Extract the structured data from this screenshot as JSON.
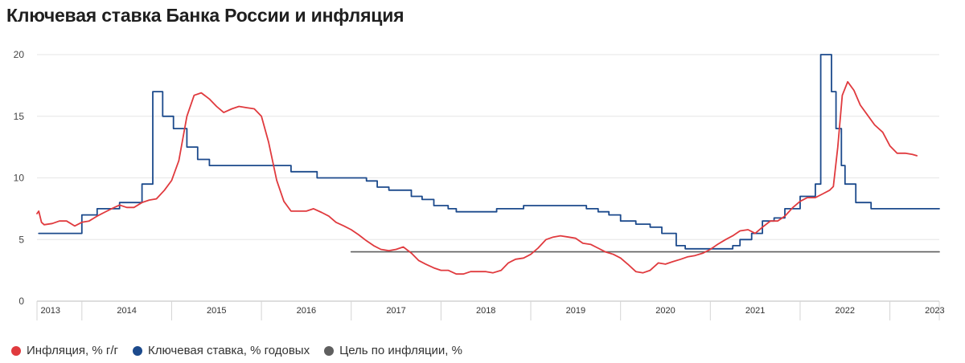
{
  "title": "Ключевая ставка Банка России и инфляция",
  "chart_data": {
    "type": "line",
    "ylim": [
      0,
      20
    ],
    "yticks": [
      0,
      5,
      10,
      15,
      20
    ],
    "xlim": [
      2013.0,
      2023.05
    ],
    "xticks": [
      {
        "label": "2013",
        "pos": 2013.15
      },
      {
        "label": "2014",
        "pos": 2014.0
      },
      {
        "label": "2015",
        "pos": 2015.0
      },
      {
        "label": "2016",
        "pos": 2016.0
      },
      {
        "label": "2017",
        "pos": 2017.0
      },
      {
        "label": "2018",
        "pos": 2018.0
      },
      {
        "label": "2019",
        "pos": 2019.0
      },
      {
        "label": "2020",
        "pos": 2020.0
      },
      {
        "label": "2021",
        "pos": 2021.0
      },
      {
        "label": "2022",
        "pos": 2022.0
      },
      {
        "label": "2023",
        "pos": 2023.0
      }
    ],
    "grid": true,
    "legend_position": "bottom-left",
    "series": [
      {
        "name": "Инфляция, % г/г",
        "color": "#e03a3e",
        "kind": "line",
        "points": [
          [
            2013.0,
            7.1
          ],
          [
            2013.02,
            7.3
          ],
          [
            2013.05,
            6.4
          ],
          [
            2013.08,
            6.2
          ],
          [
            2013.17,
            6.3
          ],
          [
            2013.25,
            6.5
          ],
          [
            2013.33,
            6.5
          ],
          [
            2013.42,
            6.1
          ],
          [
            2013.5,
            6.4
          ],
          [
            2013.58,
            6.5
          ],
          [
            2013.67,
            6.9
          ],
          [
            2013.75,
            7.2
          ],
          [
            2013.83,
            7.5
          ],
          [
            2013.92,
            7.8
          ],
          [
            2014.0,
            7.6
          ],
          [
            2014.08,
            7.6
          ],
          [
            2014.17,
            8.0
          ],
          [
            2014.25,
            8.2
          ],
          [
            2014.33,
            8.3
          ],
          [
            2014.42,
            9.0
          ],
          [
            2014.5,
            9.8
          ],
          [
            2014.58,
            11.4
          ],
          [
            2014.67,
            15.0
          ],
          [
            2014.75,
            16.7
          ],
          [
            2014.83,
            16.9
          ],
          [
            2014.92,
            16.4
          ],
          [
            2015.0,
            15.8
          ],
          [
            2015.08,
            15.3
          ],
          [
            2015.17,
            15.6
          ],
          [
            2015.25,
            15.8
          ],
          [
            2015.33,
            15.7
          ],
          [
            2015.42,
            15.6
          ],
          [
            2015.5,
            15.0
          ],
          [
            2015.58,
            12.9
          ],
          [
            2015.67,
            9.8
          ],
          [
            2015.75,
            8.1
          ],
          [
            2015.83,
            7.3
          ],
          [
            2015.92,
            7.3
          ],
          [
            2016.0,
            7.3
          ],
          [
            2016.08,
            7.5
          ],
          [
            2016.17,
            7.2
          ],
          [
            2016.25,
            6.9
          ],
          [
            2016.33,
            6.4
          ],
          [
            2016.42,
            6.1
          ],
          [
            2016.5,
            5.8
          ],
          [
            2016.58,
            5.4
          ],
          [
            2016.67,
            4.9
          ],
          [
            2016.75,
            4.5
          ],
          [
            2016.83,
            4.2
          ],
          [
            2016.92,
            4.1
          ],
          [
            2017.0,
            4.2
          ],
          [
            2017.08,
            4.4
          ],
          [
            2017.17,
            3.9
          ],
          [
            2017.25,
            3.3
          ],
          [
            2017.33,
            3.0
          ],
          [
            2017.42,
            2.7
          ],
          [
            2017.5,
            2.5
          ],
          [
            2017.58,
            2.5
          ],
          [
            2017.67,
            2.2
          ],
          [
            2017.75,
            2.2
          ],
          [
            2017.83,
            2.4
          ],
          [
            2017.92,
            2.4
          ],
          [
            2018.0,
            2.4
          ],
          [
            2018.08,
            2.3
          ],
          [
            2018.17,
            2.5
          ],
          [
            2018.25,
            3.1
          ],
          [
            2018.33,
            3.4
          ],
          [
            2018.42,
            3.5
          ],
          [
            2018.5,
            3.8
          ],
          [
            2018.58,
            4.3
          ],
          [
            2018.67,
            5.0
          ],
          [
            2018.75,
            5.2
          ],
          [
            2018.83,
            5.3
          ],
          [
            2018.92,
            5.2
          ],
          [
            2019.0,
            5.1
          ],
          [
            2019.08,
            4.7
          ],
          [
            2019.17,
            4.6
          ],
          [
            2019.25,
            4.3
          ],
          [
            2019.33,
            4.0
          ],
          [
            2019.42,
            3.8
          ],
          [
            2019.5,
            3.5
          ],
          [
            2019.58,
            3.0
          ],
          [
            2019.67,
            2.4
          ],
          [
            2019.75,
            2.3
          ],
          [
            2019.83,
            2.5
          ],
          [
            2019.92,
            3.1
          ],
          [
            2020.0,
            3.0
          ],
          [
            2020.08,
            3.2
          ],
          [
            2020.17,
            3.4
          ],
          [
            2020.25,
            3.6
          ],
          [
            2020.33,
            3.7
          ],
          [
            2020.42,
            3.9
          ],
          [
            2020.5,
            4.2
          ],
          [
            2020.58,
            4.6
          ],
          [
            2020.67,
            5.0
          ],
          [
            2020.75,
            5.3
          ],
          [
            2020.83,
            5.7
          ],
          [
            2020.92,
            5.8
          ],
          [
            2021.0,
            5.5
          ],
          [
            2021.08,
            6.0
          ],
          [
            2021.17,
            6.5
          ],
          [
            2021.25,
            6.5
          ],
          [
            2021.33,
            6.9
          ],
          [
            2021.42,
            7.6
          ],
          [
            2021.5,
            8.1
          ],
          [
            2021.58,
            8.4
          ],
          [
            2021.67,
            8.4
          ],
          [
            2021.75,
            8.7
          ],
          [
            2021.83,
            9.0
          ],
          [
            2021.87,
            9.3
          ],
          [
            2021.92,
            12.5
          ],
          [
            2021.97,
            16.7
          ],
          [
            2022.03,
            17.8
          ],
          [
            2022.1,
            17.1
          ],
          [
            2022.17,
            15.9
          ],
          [
            2022.25,
            15.1
          ],
          [
            2022.33,
            14.3
          ],
          [
            2022.42,
            13.7
          ],
          [
            2022.5,
            12.6
          ],
          [
            2022.58,
            12.0
          ],
          [
            2022.67,
            12.0
          ],
          [
            2022.75,
            11.9
          ],
          [
            2022.8,
            11.8
          ]
        ]
      },
      {
        "name": "Ключевая ставка, % годовых",
        "color": "#1c4a8c",
        "kind": "step",
        "points": [
          [
            2013.02,
            5.5
          ],
          [
            2013.5,
            5.5
          ],
          [
            2013.5,
            7.0
          ],
          [
            2013.67,
            7.0
          ],
          [
            2013.67,
            7.5
          ],
          [
            2013.92,
            7.5
          ],
          [
            2013.92,
            8.0
          ],
          [
            2014.17,
            8.0
          ],
          [
            2014.17,
            9.5
          ],
          [
            2014.29,
            9.5
          ],
          [
            2014.29,
            17.0
          ],
          [
            2014.4,
            17.0
          ],
          [
            2014.4,
            15.0
          ],
          [
            2014.52,
            15.0
          ],
          [
            2014.52,
            14.0
          ],
          [
            2014.67,
            14.0
          ],
          [
            2014.67,
            12.5
          ],
          [
            2014.79,
            12.5
          ],
          [
            2014.79,
            11.5
          ],
          [
            2014.92,
            11.5
          ],
          [
            2014.92,
            11.0
          ],
          [
            2015.83,
            11.0
          ],
          [
            2015.83,
            10.5
          ],
          [
            2016.12,
            10.5
          ],
          [
            2016.12,
            10.0
          ],
          [
            2016.67,
            10.0
          ],
          [
            2016.67,
            9.75
          ],
          [
            2016.79,
            9.75
          ],
          [
            2016.79,
            9.25
          ],
          [
            2016.92,
            9.25
          ],
          [
            2016.92,
            9.0
          ],
          [
            2017.17,
            9.0
          ],
          [
            2017.17,
            8.5
          ],
          [
            2017.29,
            8.5
          ],
          [
            2017.29,
            8.25
          ],
          [
            2017.42,
            8.25
          ],
          [
            2017.42,
            7.75
          ],
          [
            2017.58,
            7.75
          ],
          [
            2017.58,
            7.5
          ],
          [
            2017.67,
            7.5
          ],
          [
            2017.67,
            7.25
          ],
          [
            2018.12,
            7.25
          ],
          [
            2018.12,
            7.5
          ],
          [
            2018.42,
            7.5
          ],
          [
            2018.42,
            7.75
          ],
          [
            2019.12,
            7.75
          ],
          [
            2019.12,
            7.5
          ],
          [
            2019.25,
            7.5
          ],
          [
            2019.25,
            7.25
          ],
          [
            2019.37,
            7.25
          ],
          [
            2019.37,
            7.0
          ],
          [
            2019.5,
            7.0
          ],
          [
            2019.5,
            6.5
          ],
          [
            2019.67,
            6.5
          ],
          [
            2019.67,
            6.25
          ],
          [
            2019.83,
            6.25
          ],
          [
            2019.83,
            6.0
          ],
          [
            2019.96,
            6.0
          ],
          [
            2019.96,
            5.5
          ],
          [
            2020.12,
            5.5
          ],
          [
            2020.12,
            4.5
          ],
          [
            2020.22,
            4.5
          ],
          [
            2020.22,
            4.25
          ],
          [
            2020.75,
            4.25
          ],
          [
            2020.75,
            4.5
          ],
          [
            2020.83,
            4.5
          ],
          [
            2020.83,
            5.0
          ],
          [
            2020.96,
            5.0
          ],
          [
            2020.96,
            5.5
          ],
          [
            2021.08,
            5.5
          ],
          [
            2021.08,
            6.5
          ],
          [
            2021.21,
            6.5
          ],
          [
            2021.21,
            6.75
          ],
          [
            2021.33,
            6.75
          ],
          [
            2021.33,
            7.5
          ],
          [
            2021.5,
            7.5
          ],
          [
            2021.5,
            8.5
          ],
          [
            2021.67,
            8.5
          ],
          [
            2021.67,
            9.5
          ],
          [
            2021.73,
            9.5
          ],
          [
            2021.73,
            20.0
          ],
          [
            2021.85,
            20.0
          ],
          [
            2021.85,
            17.0
          ],
          [
            2021.9,
            17.0
          ],
          [
            2021.9,
            14.0
          ],
          [
            2021.96,
            14.0
          ],
          [
            2021.96,
            11.0
          ],
          [
            2022.0,
            11.0
          ],
          [
            2022.0,
            9.5
          ],
          [
            2022.12,
            9.5
          ],
          [
            2022.12,
            8.0
          ],
          [
            2022.29,
            8.0
          ],
          [
            2022.29,
            7.5
          ],
          [
            2023.05,
            7.5
          ]
        ]
      },
      {
        "name": "Цель по инфляции, %",
        "color": "#5f5f5f",
        "kind": "line",
        "points": [
          [
            2016.5,
            4.0
          ],
          [
            2023.05,
            4.0
          ]
        ]
      }
    ]
  }
}
